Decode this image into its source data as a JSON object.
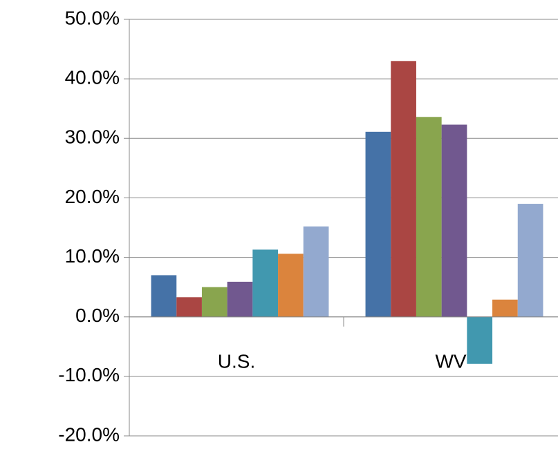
{
  "chart_data": {
    "type": "bar",
    "categories": [
      "U.S.",
      "WV"
    ],
    "series": [
      {
        "color": "#4572a7",
        "values": [
          7.0,
          31.1
        ]
      },
      {
        "color": "#aa4643",
        "values": [
          3.3,
          43.0
        ]
      },
      {
        "color": "#89a54e",
        "values": [
          5.0,
          33.6
        ]
      },
      {
        "color": "#71588f",
        "values": [
          5.9,
          32.3
        ]
      },
      {
        "color": "#4198af",
        "values": [
          11.3,
          -7.9
        ]
      },
      {
        "color": "#db843d",
        "values": [
          10.6,
          2.9
        ]
      },
      {
        "color": "#93a9cf",
        "values": [
          15.2,
          19.0
        ]
      }
    ],
    "ylim": [
      -20,
      50
    ],
    "yticks": [
      {
        "value": -20,
        "label": "-20.0%"
      },
      {
        "value": -10,
        "label": "-10.0%"
      },
      {
        "value": 0,
        "label": "0.0%"
      },
      {
        "value": 10,
        "label": "10.0%"
      },
      {
        "value": 20,
        "label": "20.0%"
      },
      {
        "value": 30,
        "label": "30.0%"
      },
      {
        "value": 40,
        "label": "40.0%"
      },
      {
        "value": 50,
        "label": "50.0%"
      }
    ],
    "grid": true
  }
}
